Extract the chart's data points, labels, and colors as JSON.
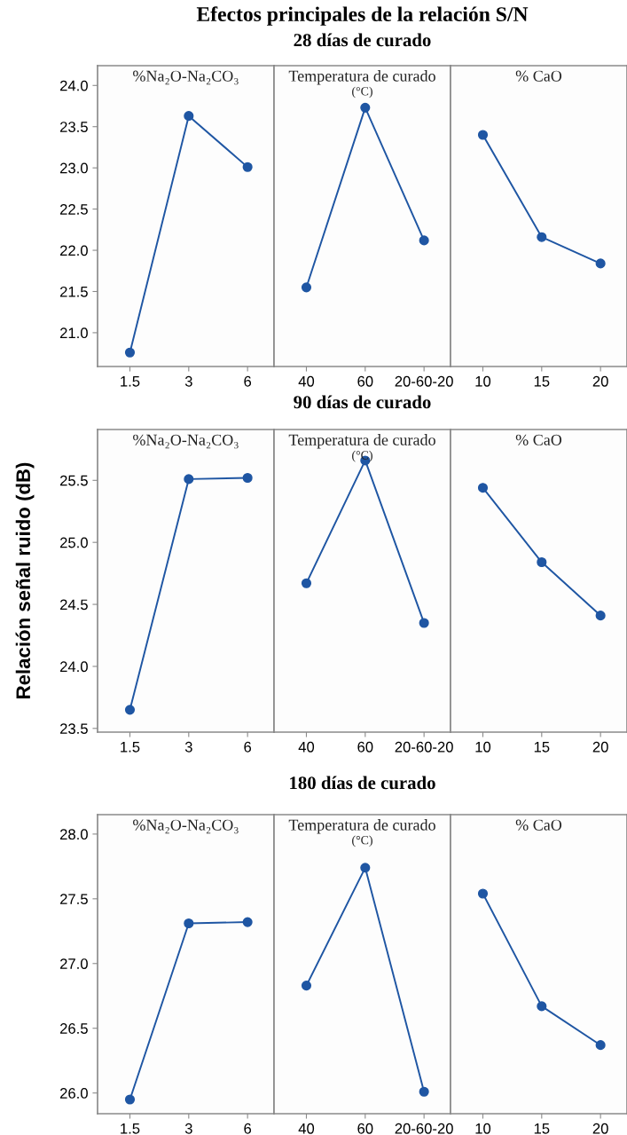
{
  "chart_data": [
    {
      "type": "line",
      "annotations": [
        "%Na₂O-Na₂CO₃"
      ],
      "categories": [
        "1.5",
        "3",
        "6"
      ],
      "series": [
        {
          "color": "#1f56a3",
          "values": [
            20.76,
            23.63,
            23.01
          ]
        }
      ],
      "ylim": [
        20.59,
        24.24
      ],
      "yticks": [
        {
          "value": 21,
          "label": "21.0"
        },
        21.5,
        {
          "value": 22,
          "label": "22.0"
        },
        22.5,
        {
          "value": 23,
          "label": "23.0"
        },
        23.5,
        {
          "value": 24,
          "label": "24.0"
        }
      ],
      "marker": "circle",
      "line_style": "solid"
    },
    {
      "type": "line",
      "title": "Efectos principales de la relación S/N",
      "subtitle": "28 días de curado",
      "annotations": [
        "Temperatura de curado",
        "(°C)"
      ],
      "categories": [
        "40",
        "60",
        "20-60-20"
      ],
      "series": [
        {
          "color": "#1f56a3",
          "values": [
            21.55,
            23.73,
            22.12
          ]
        }
      ],
      "ylim": [
        20.59,
        24.24
      ],
      "tick_labels": "x",
      "marker": "circle",
      "line_style": "solid"
    },
    {
      "type": "line",
      "annotations": [
        "% CaO"
      ],
      "categories": [
        "10",
        "15",
        "20"
      ],
      "series": [
        {
          "color": "#1f56a3",
          "values": [
            23.4,
            22.16,
            21.84
          ]
        }
      ],
      "ylim": [
        20.59,
        24.24
      ],
      "tick_labels": "x",
      "marker": "circle",
      "line_style": "solid"
    },
    {
      "type": "line",
      "ylabel": "Relación señal ruido (dB)",
      "annotations": [
        "%Na₂O-Na₂CO₃"
      ],
      "categories": [
        "1.5",
        "3",
        "6"
      ],
      "series": [
        {
          "color": "#1f56a3",
          "values": [
            23.65,
            25.51,
            25.52
          ]
        }
      ],
      "ylim": [
        23.47,
        25.91
      ],
      "yticks": [
        23.5,
        {
          "value": 24,
          "label": "24.0"
        },
        24.5,
        {
          "value": 25,
          "label": "25.0"
        },
        25.5
      ],
      "marker": "circle",
      "line_style": "solid"
    },
    {
      "type": "line",
      "subtitle": "90 días de curado",
      "annotations": [
        "Temperatura de curado",
        "(°C)"
      ],
      "categories": [
        "40",
        "60",
        "20-60-20"
      ],
      "series": [
        {
          "color": "#1f56a3",
          "values": [
            24.67,
            25.66,
            24.35
          ]
        }
      ],
      "ylim": [
        23.47,
        25.91
      ],
      "tick_labels": "x",
      "marker": "circle",
      "line_style": "solid"
    },
    {
      "type": "line",
      "annotations": [
        "% CaO"
      ],
      "categories": [
        "10",
        "15",
        "20"
      ],
      "series": [
        {
          "color": "#1f56a3",
          "values": [
            25.44,
            24.84,
            24.41
          ]
        }
      ],
      "ylim": [
        23.47,
        25.91
      ],
      "tick_labels": "x",
      "marker": "circle",
      "line_style": "solid"
    },
    {
      "type": "line",
      "annotations": [
        "%Na₂O-Na₂CO₃"
      ],
      "categories": [
        "1.5",
        "3",
        "6"
      ],
      "series": [
        {
          "color": "#1f56a3",
          "values": [
            25.95,
            27.31,
            27.32
          ]
        }
      ],
      "ylim": [
        25.84,
        28.15
      ],
      "yticks": [
        {
          "value": 26,
          "label": "26.0"
        },
        26.5,
        {
          "value": 27,
          "label": "27.0"
        },
        27.5,
        {
          "value": 28,
          "label": "28.0"
        }
      ],
      "marker": "circle",
      "line_style": "solid"
    },
    {
      "type": "line",
      "subtitle": "180 días de curado",
      "annotations": [
        "Temperatura de curado",
        "(°C)"
      ],
      "categories": [
        "40",
        "60",
        "20-60-20"
      ],
      "series": [
        {
          "color": "#1f56a3",
          "values": [
            26.83,
            27.74,
            26.01
          ]
        }
      ],
      "ylim": [
        25.84,
        28.15
      ],
      "tick_labels": "x",
      "marker": "circle",
      "line_style": "solid"
    },
    {
      "type": "line",
      "annotations": [
        "% CaO"
      ],
      "categories": [
        "10",
        "15",
        "20"
      ],
      "series": [
        {
          "color": "#1f56a3",
          "values": [
            27.54,
            26.67,
            26.37
          ]
        }
      ],
      "ylim": [
        25.84,
        28.15
      ],
      "tick_labels": "x",
      "marker": "circle",
      "line_style": "solid"
    }
  ]
}
